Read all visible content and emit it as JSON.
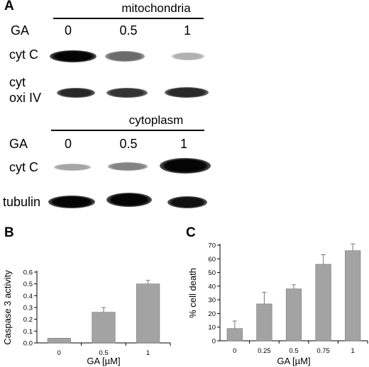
{
  "panels": {
    "a": "A",
    "b": "B",
    "c": "C"
  },
  "blot": {
    "mito": {
      "title": "mitochondria",
      "ga_label": "GA",
      "doses": [
        "0",
        "0.5",
        "1"
      ],
      "rows": [
        {
          "label_lines": [
            "cyt C"
          ],
          "intensity": [
            1.0,
            0.55,
            0.25
          ]
        },
        {
          "label_lines": [
            "cyt",
            "oxi IV"
          ],
          "intensity": [
            0.85,
            0.8,
            0.85
          ]
        }
      ]
    },
    "cyto": {
      "title": "cytoplasm",
      "ga_label": "GA",
      "doses": [
        "0",
        "0.5",
        "1"
      ],
      "rows": [
        {
          "label_lines": [
            "cyt C"
          ],
          "intensity": [
            0.3,
            0.45,
            1.0
          ]
        },
        {
          "label_lines": [
            "tubulin"
          ],
          "intensity": [
            1.0,
            1.0,
            0.95
          ]
        }
      ]
    }
  },
  "chart_data": [
    {
      "type": "bar",
      "panel": "B",
      "categories": [
        "0",
        "0.5",
        "1"
      ],
      "values": [
        0.04,
        0.26,
        0.5
      ],
      "errors": [
        0.0,
        0.04,
        0.03
      ],
      "xlabel": "GA [µM]",
      "ylabel": "Caspase 3 activity",
      "ylim": [
        0,
        0.6
      ],
      "yticks": [
        0,
        0.1,
        0.2,
        0.3,
        0.4,
        0.5,
        0.6
      ],
      "ytick_labels": [
        "0.0",
        "0.1",
        "0.2",
        "0.3",
        "0.4",
        "0.5",
        "0.6"
      ],
      "bar_color": "#a3a3a3"
    },
    {
      "type": "bar",
      "panel": "C",
      "categories": [
        "0",
        "0.25",
        "0.5",
        "0.75",
        "1"
      ],
      "values": [
        9,
        27,
        38,
        56,
        66
      ],
      "errors": [
        5.5,
        8.5,
        3,
        7,
        5
      ],
      "xlabel": "GA [µM]",
      "ylabel": "% cell death",
      "ylim": [
        0,
        70
      ],
      "yticks": [
        0,
        10,
        20,
        30,
        40,
        50,
        60,
        70
      ],
      "ytick_labels": [
        "0",
        "10",
        "20",
        "30",
        "40",
        "50",
        "60",
        "70"
      ],
      "bar_color": "#a3a3a3"
    }
  ]
}
